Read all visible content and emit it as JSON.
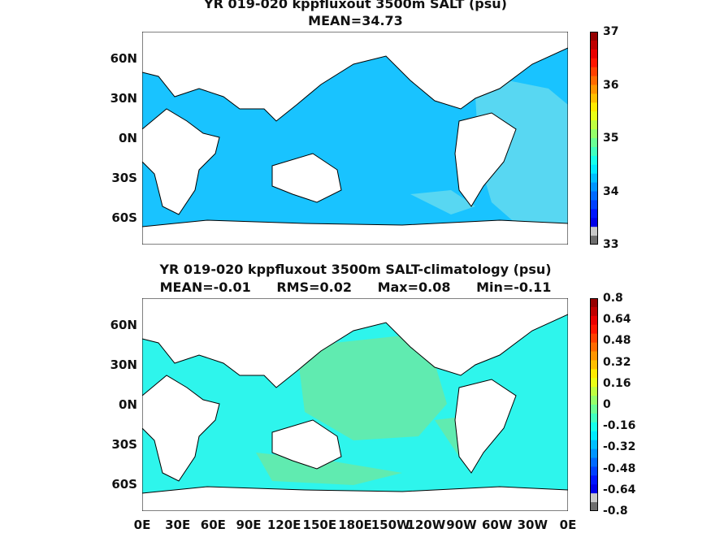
{
  "chart_data": [
    {
      "type": "heatmap",
      "title": "YR 019-020 kppfluxout 3500m SALT (psu)",
      "subtitle": "MEAN=34.73",
      "y_tick_labels": [
        "60N",
        "30N",
        "0N",
        "30S",
        "60S"
      ],
      "x_tick_labels": [],
      "colorbar": {
        "ticks": [
          "37",
          "36",
          "35",
          "34",
          "33"
        ],
        "range": [
          33,
          37
        ]
      },
      "dominant_value": 34.73,
      "colors": {
        "ocean": "#19c3ff",
        "patch": "#58d7f2",
        "land": "#ffffff"
      }
    },
    {
      "type": "heatmap",
      "title": "YR 019-020 kppfluxout 3500m SALT-climatology (psu)",
      "stats": {
        "mean": "MEAN=-0.01",
        "rms": "RMS=0.02",
        "max": "Max=0.08",
        "min": "Min=-0.11"
      },
      "y_tick_labels": [
        "60N",
        "30N",
        "0N",
        "30S",
        "60S"
      ],
      "x_tick_labels": [
        "0E",
        "30E",
        "60E",
        "90E",
        "120E",
        "150E",
        "180E",
        "150W",
        "120W",
        "90W",
        "60W",
        "30W",
        "0E"
      ],
      "colorbar": {
        "ticks": [
          "0.8",
          "0.64",
          "0.48",
          "0.32",
          "0.16",
          "0",
          "-0.16",
          "-0.32",
          "-0.48",
          "-0.64",
          "-0.8"
        ],
        "range": [
          -0.8,
          0.8
        ]
      },
      "dominant_value": -0.01,
      "colors": {
        "ocean": "#2ef5ec",
        "patch": "#60ebb0",
        "land": "#ffffff"
      }
    }
  ]
}
